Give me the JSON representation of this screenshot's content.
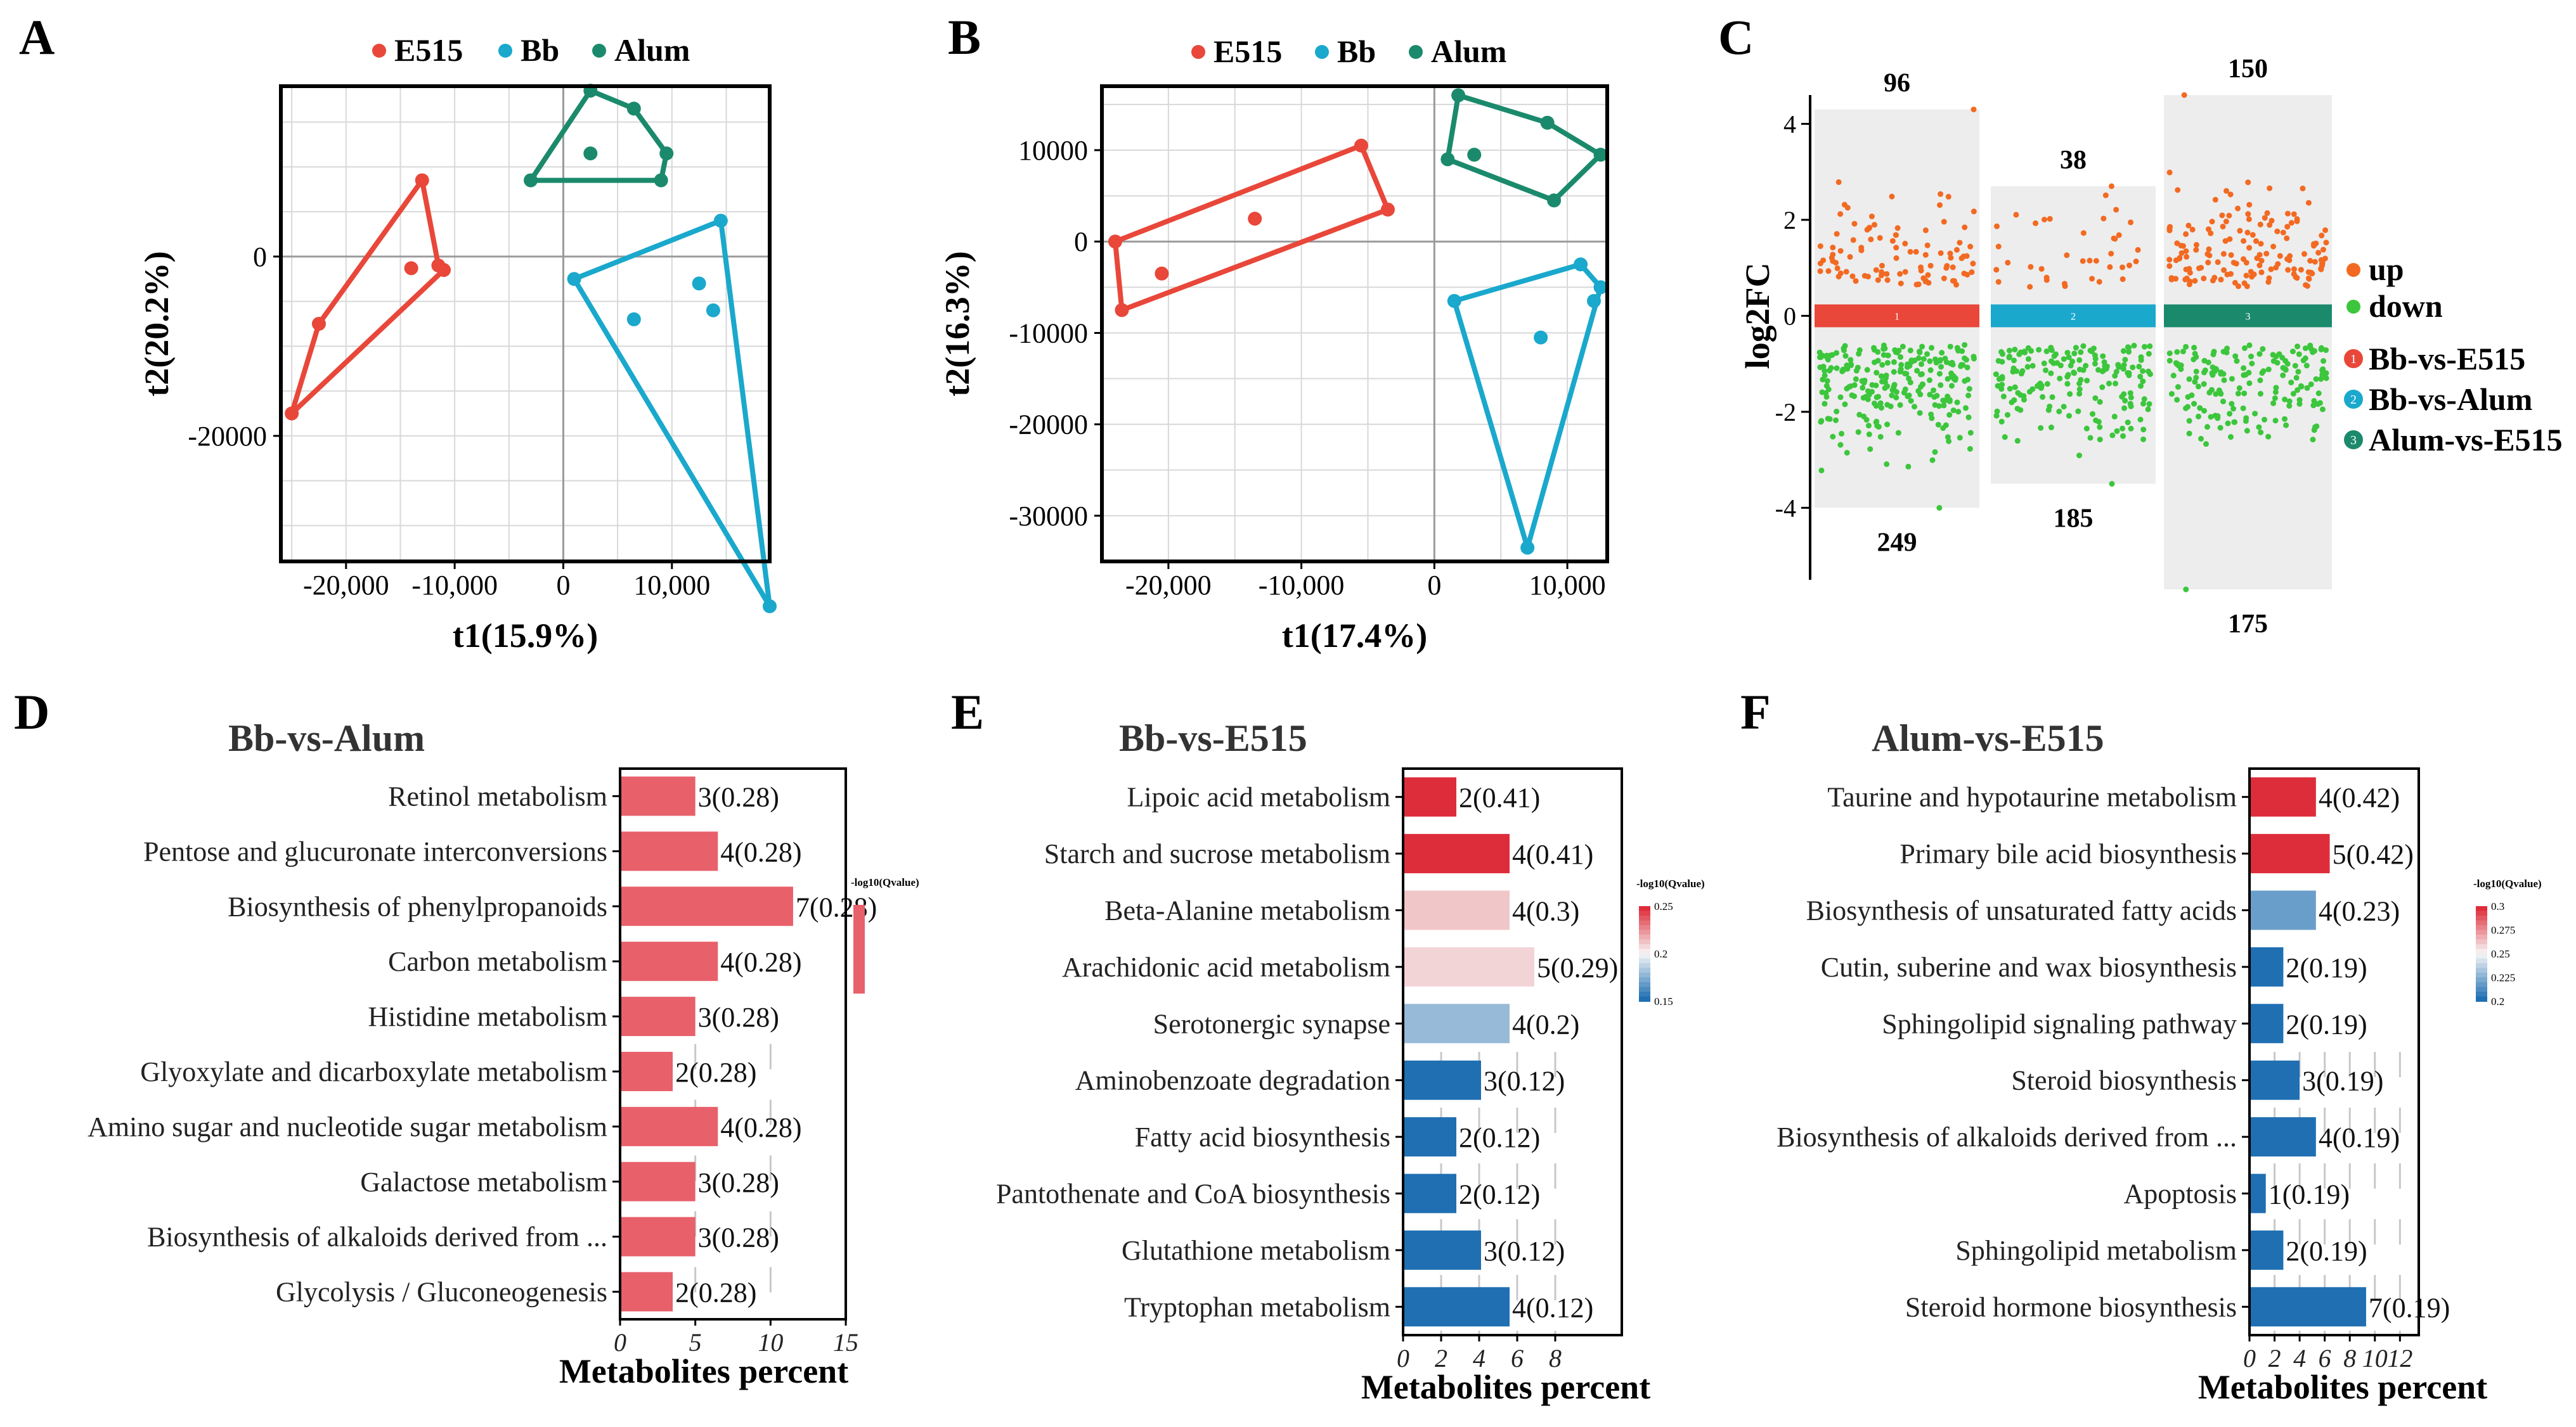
{
  "colors": {
    "E515": "#e8473a",
    "Bb": "#1aa8cc",
    "Alum": "#1b8a6c",
    "up": "#f26a22",
    "down": "#3cc63c",
    "panel_bg": "#ededed",
    "grid": "#d8d8d8"
  },
  "legend": [
    "E515",
    "Bb",
    "Alum"
  ],
  "panel_labels": [
    "A",
    "B",
    "C",
    "D",
    "E",
    "F"
  ],
  "chart_data": [
    {
      "id": "A",
      "type": "scatter",
      "xlabel": "t1(15.9%)",
      "ylabel": "t2(20.2%)",
      "xlim": [
        -26000,
        19000
      ],
      "ylim": [
        -34000,
        19000
      ],
      "xticks": [
        -20000,
        -10000,
        0,
        10000
      ],
      "xtick_labels": [
        "-20,000",
        "-10,000",
        "0",
        "10,000"
      ],
      "yticks": [
        0,
        -20000
      ],
      "ytick_labels": [
        "0",
        "-20000"
      ],
      "groups": [
        {
          "name": "E515",
          "hull": [
            [
              -25000,
              -17500
            ],
            [
              -22500,
              -7500
            ],
            [
              -13000,
              8500
            ],
            [
              -11500,
              -1000
            ],
            [
              -11000,
              -1500
            ]
          ],
          "center": [
            -14000,
            -1300
          ]
        },
        {
          "name": "Bb",
          "hull": [
            [
              1000,
              -2500
            ],
            [
              14500,
              4000
            ],
            [
              19000,
              -39000
            ]
          ],
          "inner": [
            [
              6500,
              -7000
            ],
            [
              12500,
              -3000
            ],
            [
              13800,
              -6000
            ]
          ]
        },
        {
          "name": "Alum",
          "hull": [
            [
              -3000,
              8500
            ],
            [
              2500,
              18500
            ],
            [
              6500,
              16500
            ],
            [
              9500,
              11500
            ],
            [
              9000,
              8500
            ]
          ],
          "center": [
            2500,
            11500
          ]
        }
      ]
    },
    {
      "id": "B",
      "type": "scatter",
      "xlabel": "t1(17.4%)",
      "ylabel": "t2(16.3%)",
      "xlim": [
        -25000,
        13000
      ],
      "ylim": [
        -35000,
        17000
      ],
      "xticks": [
        -20000,
        -10000,
        0,
        10000
      ],
      "xtick_labels": [
        "-20,000",
        "-10,000",
        "0",
        "10,000"
      ],
      "yticks": [
        10000,
        0,
        -10000,
        -20000,
        -30000
      ],
      "ytick_labels": [
        "10000",
        "0",
        "-10000",
        "-20000",
        "-30000"
      ],
      "groups": [
        {
          "name": "E515",
          "hull": [
            [
              -24000,
              0
            ],
            [
              -23500,
              -7500
            ],
            [
              -3500,
              3500
            ],
            [
              -5500,
              10500
            ]
          ],
          "center": [
            -20500,
            -3500
          ],
          "extra": [
            [
              -13500,
              2500
            ]
          ]
        },
        {
          "name": "Bb",
          "hull": [
            [
              1500,
              -6500
            ],
            [
              7000,
              -33500
            ],
            [
              12500,
              -5000
            ],
            [
              11000,
              -2500
            ]
          ],
          "inner": [
            [
              8000,
              -10500
            ],
            [
              12000,
              -6500
            ]
          ]
        },
        {
          "name": "Alum",
          "hull": [
            [
              1000,
              9000
            ],
            [
              1800,
              16000
            ],
            [
              8500,
              13000
            ],
            [
              12500,
              9500
            ],
            [
              9000,
              4500
            ]
          ],
          "center": [
            3000,
            9500
          ]
        }
      ]
    },
    {
      "id": "C",
      "type": "scatter",
      "ylabel": "log2FC",
      "ylim": [
        -5.5,
        4.6
      ],
      "yticks": [
        4,
        2,
        0,
        -2,
        -4
      ],
      "legend": [
        "up",
        "down",
        "Bb-vs-E515",
        "Bb-vs-Alum",
        "Alum-vs-E515"
      ],
      "legend_markers": [
        "1",
        "2",
        "3"
      ],
      "strips": [
        {
          "name": "Bb-vs-E515",
          "index": "1",
          "up": 96,
          "down": 249,
          "max": 4.3,
          "min": -4.0
        },
        {
          "name": "Bb-vs-Alum",
          "index": "2",
          "up": 38,
          "down": 185,
          "max": 2.7,
          "min": -3.5
        },
        {
          "name": "Alum-vs-E515",
          "index": "3",
          "up": 150,
          "down": 175,
          "max": 4.6,
          "min": -5.7
        }
      ]
    },
    {
      "id": "D",
      "type": "bar",
      "title": "Bb-vs-Alum",
      "xlabel": "Metabolites percent",
      "xlim": [
        0,
        15
      ],
      "xticks": [
        0,
        5,
        10,
        15
      ],
      "colorbar": {
        "title": "-log10(Qvalue)",
        "ticks": []
      },
      "categories": [
        "Retinol metabolism",
        "Pentose and glucuronate interconversions",
        "Biosynthesis of phenylpropanoids",
        "Carbon metabolism",
        "Histidine metabolism",
        "Glyoxylate and dicarboxylate metabolism",
        "Amino sugar and nucleotide sugar metabolism",
        "Galactose metabolism",
        "Biosynthesis of alkaloids derived from ...",
        "Glycolysis / Gluconeogenesis"
      ],
      "values": [
        5,
        6.5,
        11.5,
        6.5,
        5,
        3.5,
        6.5,
        5,
        5,
        3.5
      ],
      "labels": [
        "3(0.28)",
        "4(0.28)",
        "7(0.28)",
        "4(0.28)",
        "3(0.28)",
        "2(0.28)",
        "4(0.28)",
        "3(0.28)",
        "3(0.28)",
        "2(0.28)"
      ],
      "q": [
        0.28,
        0.28,
        0.28,
        0.28,
        0.28,
        0.28,
        0.28,
        0.28,
        0.28,
        0.28
      ]
    },
    {
      "id": "E",
      "type": "bar",
      "title": "Bb-vs-E515",
      "xlabel": "Metabolites percent",
      "xlim": [
        0,
        11.5
      ],
      "xticks": [
        0,
        2,
        4,
        6,
        8
      ],
      "colorbar": {
        "title": "-log10(Qvalue)",
        "ticks": [
          "0.25",
          "0.2",
          "0.15"
        ]
      },
      "categories": [
        "Lipoic acid metabolism",
        "Starch and sucrose metabolism",
        "Beta-Alanine metabolism",
        "Arachidonic acid metabolism",
        "Serotonergic synapse",
        "Aminobenzoate degradation",
        "Fatty acid biosynthesis",
        "Pantothenate and CoA biosynthesis",
        "Glutathione metabolism",
        "Tryptophan metabolism"
      ],
      "values": [
        2.8,
        5.6,
        5.6,
        6.9,
        5.6,
        4.1,
        2.8,
        2.8,
        4.1,
        5.6
      ],
      "labels": [
        "2(0.41)",
        "4(0.41)",
        "4(0.3)",
        "5(0.29)",
        "4(0.2)",
        "3(0.12)",
        "2(0.12)",
        "2(0.12)",
        "3(0.12)",
        "4(0.12)"
      ],
      "q": [
        0.41,
        0.41,
        0.3,
        0.29,
        0.2,
        0.12,
        0.12,
        0.12,
        0.12,
        0.12
      ]
    },
    {
      "id": "F",
      "type": "bar",
      "title": "Alum-vs-E515",
      "xlabel": "Metabolites percent",
      "xlim": [
        0,
        13.5
      ],
      "xticks": [
        0,
        2,
        4,
        6,
        8,
        10,
        12
      ],
      "colorbar": {
        "title": "-log10(Qvalue)",
        "ticks": [
          "0.3",
          "0.275",
          "0.25",
          "0.225",
          "0.2"
        ]
      },
      "categories": [
        "Taurine and hypotaurine metabolism",
        "Primary bile acid biosynthesis",
        "Biosynthesis of unsaturated fatty acids",
        "Cutin, suberine and wax biosynthesis",
        "Sphingolipid signaling pathway",
        "Steroid biosynthesis",
        "Biosynthesis of alkaloids derived from ...",
        "Apoptosis",
        "Sphingolipid metabolism",
        "Steroid hormone biosynthesis"
      ],
      "values": [
        5.3,
        6.4,
        5.3,
        2.7,
        2.7,
        4.0,
        5.3,
        1.3,
        2.7,
        9.3
      ],
      "labels": [
        "4(0.42)",
        "5(0.42)",
        "4(0.23)",
        "2(0.19)",
        "2(0.19)",
        "3(0.19)",
        "4(0.19)",
        "1(0.19)",
        "2(0.19)",
        "7(0.19)"
      ],
      "q": [
        0.42,
        0.42,
        0.23,
        0.19,
        0.19,
        0.19,
        0.19,
        0.19,
        0.19,
        0.19
      ]
    }
  ]
}
